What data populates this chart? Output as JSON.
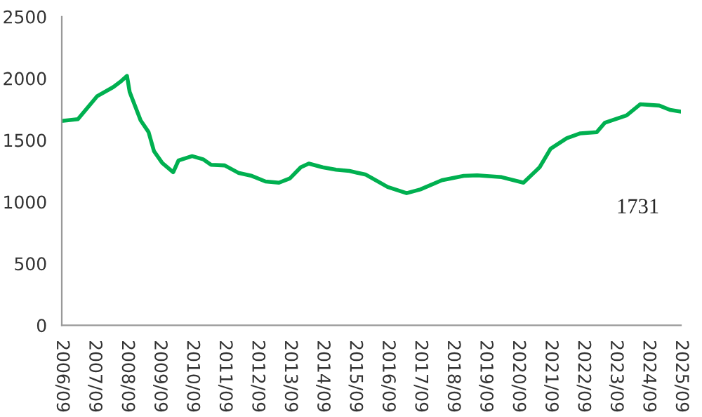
{
  "chart_data": {
    "type": "line",
    "grid": false,
    "legend": false,
    "marker": "none",
    "line_style": "solid",
    "x": [
      "2006-09",
      "2007-03",
      "2007-10",
      "2008-04",
      "2008-07",
      "2008-09",
      "2008-10",
      "2009-02",
      "2009-05",
      "2009-07",
      "2009-10",
      "2010-02",
      "2010-04",
      "2010-09",
      "2011-01",
      "2011-04",
      "2011-09",
      "2012-02",
      "2012-07",
      "2012-12",
      "2013-05",
      "2013-09",
      "2014-01",
      "2014-04",
      "2014-09",
      "2015-02",
      "2015-07",
      "2016-01",
      "2016-09",
      "2017-04",
      "2017-09",
      "2018-05",
      "2019-01",
      "2019-06",
      "2020-03",
      "2020-11",
      "2021-05",
      "2021-09",
      "2022-03",
      "2022-08",
      "2023-02",
      "2023-05",
      "2024-01",
      "2024-06",
      "2025-01",
      "2025-05",
      "2025-09"
    ],
    "series": [
      {
        "color": "#00b050",
        "values": [
          1655,
          1670,
          1855,
          1930,
          1980,
          2020,
          1890,
          1660,
          1565,
          1410,
          1315,
          1240,
          1335,
          1370,
          1345,
          1300,
          1295,
          1235,
          1210,
          1165,
          1155,
          1190,
          1280,
          1310,
          1280,
          1260,
          1250,
          1220,
          1120,
          1070,
          1100,
          1175,
          1210,
          1215,
          1200,
          1155,
          1280,
          1430,
          1515,
          1555,
          1565,
          1640,
          1700,
          1790,
          1780,
          1745,
          1731
        ]
      }
    ],
    "xlim": [
      "2006-09",
      "2025-09"
    ],
    "xticks": [
      {
        "value": "2006-09",
        "label": "2006/09"
      },
      {
        "value": "2007-09",
        "label": "2007/09"
      },
      {
        "value": "2008-09",
        "label": "2008/09"
      },
      {
        "value": "2009-09",
        "label": "2009/09"
      },
      {
        "value": "2010-09",
        "label": "2010/09"
      },
      {
        "value": "2011-09",
        "label": "2011/09"
      },
      {
        "value": "2012-09",
        "label": "2012/09"
      },
      {
        "value": "2013-09",
        "label": "2013/09"
      },
      {
        "value": "2014-09",
        "label": "2014/09"
      },
      {
        "value": "2015-09",
        "label": "2015/09"
      },
      {
        "value": "2016-09",
        "label": "2016/09"
      },
      {
        "value": "2017-09",
        "label": "2017/09"
      },
      {
        "value": "2018-09",
        "label": "2018/09"
      },
      {
        "value": "2019-09",
        "label": "2019/09"
      },
      {
        "value": "2020-09",
        "label": "2020/09"
      },
      {
        "value": "2021-09",
        "label": "2021/09"
      },
      {
        "value": "2022-09",
        "label": "2022/09"
      },
      {
        "value": "2023-09",
        "label": "2023/09"
      },
      {
        "value": "2024-09",
        "label": "2024/09"
      },
      {
        "value": "2025-09",
        "label": "2025/09"
      }
    ],
    "ylim": [
      0,
      2500
    ],
    "yticks": [
      0,
      500,
      1000,
      1500,
      2000,
      2500
    ],
    "annotations": [
      "1731"
    ]
  }
}
